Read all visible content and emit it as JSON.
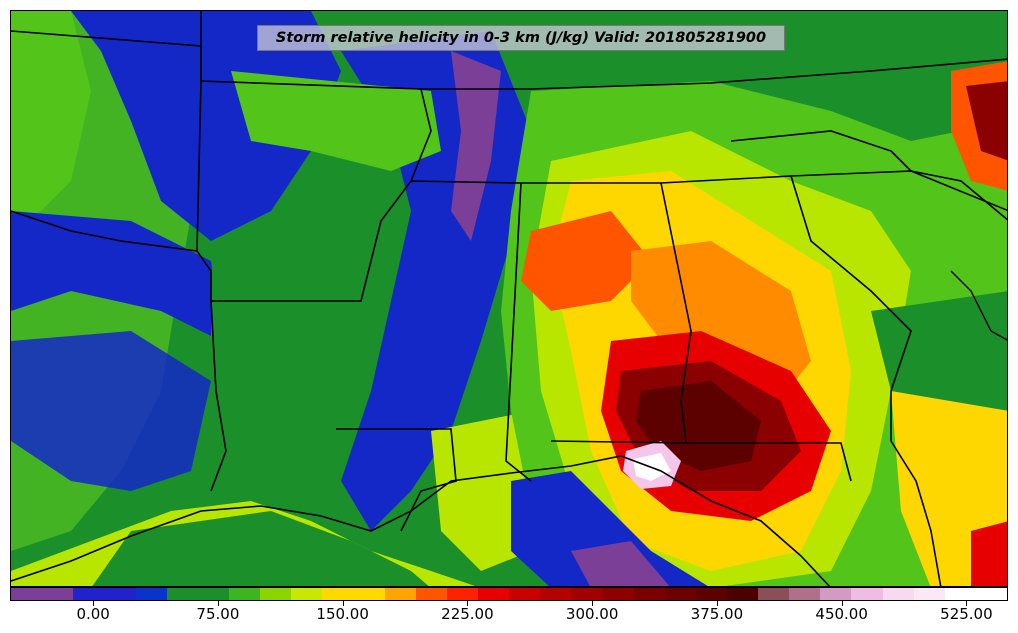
{
  "title": "Storm relative helicity in 0-3 km (J/kg) Valid: 201805281900",
  "colorbar": {
    "colors": [
      "#7b3f98",
      "#7b3f98",
      "#2222cc",
      "#2222cc",
      "#0a33cc",
      "#1a8f2a",
      "#1a8f2a",
      "#3cb521",
      "#8cd400",
      "#c7e800",
      "#ffd900",
      "#ffd900",
      "#ffa500",
      "#ff5500",
      "#ff2200",
      "#e60000",
      "#c80000",
      "#b40000",
      "#a00000",
      "#8c0000",
      "#7a0000",
      "#6b0000",
      "#5c0000",
      "#4d0000",
      "#8b4f57",
      "#b06f8a",
      "#d39ac4",
      "#eebde3",
      "#f7d9f0",
      "#fbe8f6",
      "#ffffff",
      "#ffffff"
    ],
    "tick_labels": [
      "0.00",
      "75.00",
      "150.00",
      "225.00",
      "300.00",
      "375.00",
      "450.00",
      "525.00"
    ],
    "tick_values": [
      0,
      75,
      150,
      225,
      300,
      375,
      450,
      525
    ],
    "range": [
      -50,
      550
    ]
  },
  "palette": {
    "purple": "#7b3f98",
    "blue": "#1428c8",
    "green": "#1a8f2a",
    "lightgreen": "#52c41a",
    "lime": "#b8e600",
    "yellow": "#ffd700",
    "orange": "#ff8c00",
    "red": "#e60000",
    "darkred": "#8b0000",
    "maroon": "#5c0000",
    "pink": "#f5c6ec",
    "white": "#ffffff"
  }
}
